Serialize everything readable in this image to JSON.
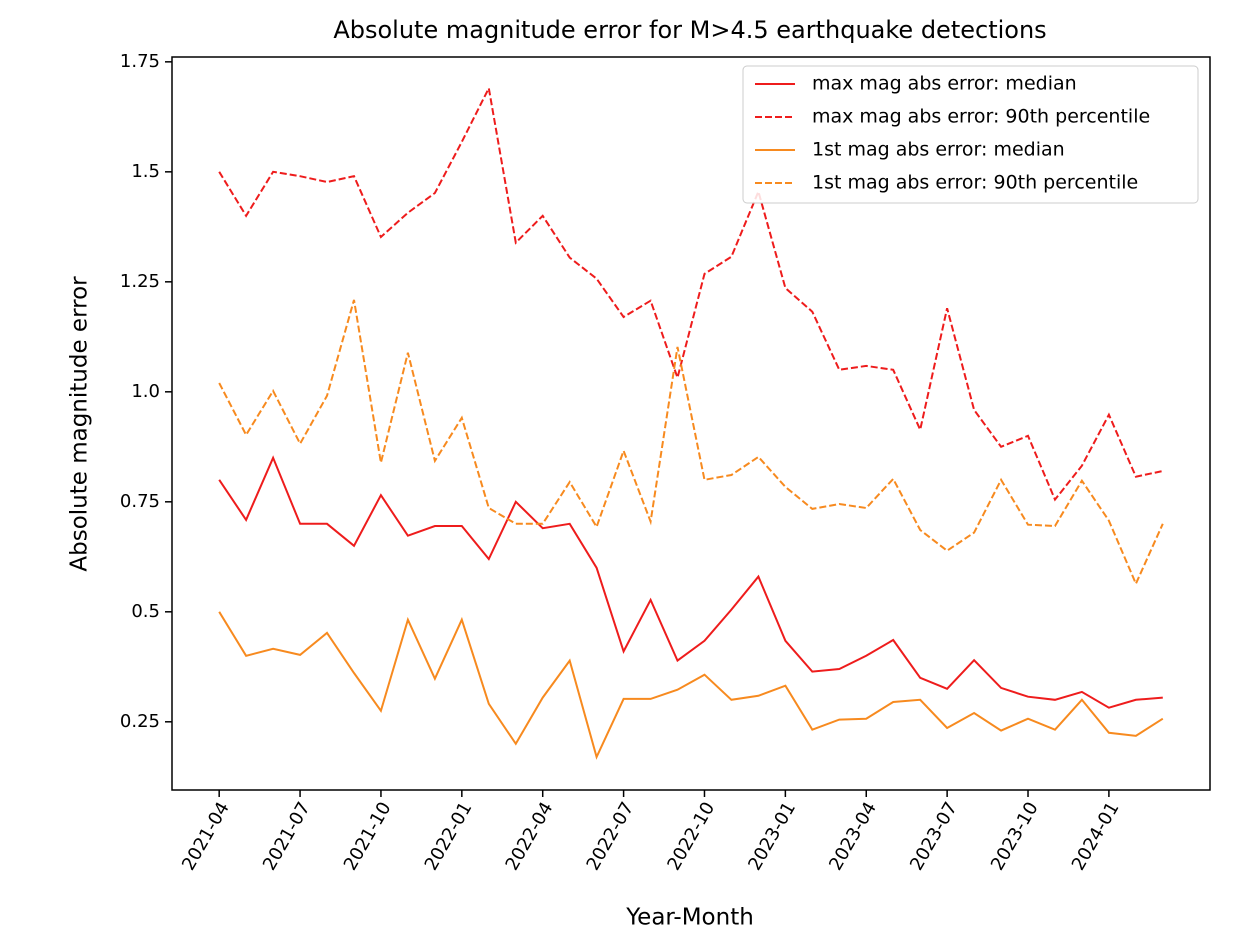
{
  "chart_data": {
    "type": "line",
    "title": "Absolute magnitude error for M>4.5 earthquake detections",
    "x_label": "Year-Month",
    "y_label": "Absolute magnitude error",
    "x": [
      "2021-04",
      "2021-05",
      "2021-06",
      "2021-07",
      "2021-08",
      "2021-09",
      "2021-10",
      "2021-11",
      "2021-12",
      "2022-01",
      "2022-02",
      "2022-03",
      "2022-04",
      "2022-05",
      "2022-06",
      "2022-07",
      "2022-08",
      "2022-09",
      "2022-10",
      "2022-11",
      "2022-12",
      "2023-01",
      "2023-02",
      "2023-03",
      "2023-04",
      "2023-05",
      "2023-06",
      "2023-07",
      "2023-08",
      "2023-09",
      "2023-10",
      "2023-11",
      "2023-12",
      "2024-01",
      "2024-02",
      "2024-03"
    ],
    "xticks": [
      "2021-04",
      "2021-07",
      "2021-10",
      "2022-01",
      "2022-04",
      "2022-07",
      "2022-10",
      "2023-01",
      "2023-04",
      "2023-07",
      "2023-10",
      "2024-01"
    ],
    "ylim": [
      0.095,
      1.761
    ],
    "yticks": [
      0.25,
      0.5,
      0.75,
      {
        "value": 1.0,
        "label": "1.0"
      },
      1.25,
      1.5,
      1.75
    ],
    "legend": "upper right",
    "series": [
      {
        "name": "max mag abs error: median",
        "color": "#ee1c1c",
        "linestyle": "solid",
        "values": [
          0.8,
          0.709,
          0.85,
          0.7,
          0.7,
          0.65,
          0.765,
          0.673,
          0.695,
          0.695,
          0.62,
          0.75,
          0.69,
          0.7,
          0.6,
          0.41,
          0.527,
          0.389,
          0.434,
          0.505,
          0.58,
          0.434,
          0.364,
          0.37,
          0.4,
          0.436,
          0.35,
          0.325,
          0.39,
          0.327,
          0.307,
          0.3,
          0.318,
          0.282,
          0.3,
          0.305
        ]
      },
      {
        "name": "max mag abs error: 90th percentile",
        "color": "#ee1c1c",
        "linestyle": "dashed",
        "values": [
          1.5,
          1.4,
          1.5,
          1.49,
          1.477,
          1.49,
          1.352,
          1.407,
          1.452,
          1.568,
          1.69,
          1.339,
          1.4,
          1.305,
          1.257,
          1.17,
          1.207,
          1.032,
          1.268,
          1.307,
          1.455,
          1.236,
          1.182,
          1.05,
          1.059,
          1.05,
          0.914,
          1.19,
          0.959,
          0.875,
          0.9,
          0.755,
          0.832,
          0.948,
          0.807,
          0.82
        ]
      },
      {
        "name": "1st mag abs error: median",
        "color": "#f78a1f",
        "linestyle": "solid",
        "values": [
          0.5,
          0.4,
          0.416,
          0.402,
          0.452,
          0.361,
          0.275,
          0.482,
          0.348,
          0.482,
          0.291,
          0.2,
          0.305,
          0.389,
          0.17,
          0.302,
          0.302,
          0.323,
          0.357,
          0.3,
          0.309,
          0.332,
          0.232,
          0.255,
          0.257,
          0.295,
          0.3,
          0.236,
          0.27,
          0.23,
          0.257,
          0.232,
          0.3,
          0.225,
          0.218,
          0.257
        ]
      },
      {
        "name": "1st mag abs error: 90th percentile",
        "color": "#f78a1f",
        "linestyle": "dashed",
        "values": [
          1.02,
          0.902,
          1.002,
          0.882,
          0.991,
          1.209,
          0.839,
          1.089,
          0.843,
          0.941,
          0.736,
          0.7,
          0.7,
          0.795,
          0.693,
          0.866,
          0.705,
          1.102,
          0.8,
          0.811,
          0.852,
          0.784,
          0.734,
          0.745,
          0.736,
          0.802,
          0.686,
          0.639,
          0.68,
          0.8,
          0.698,
          0.695,
          0.798,
          0.707,
          0.564,
          0.7
        ]
      }
    ]
  }
}
